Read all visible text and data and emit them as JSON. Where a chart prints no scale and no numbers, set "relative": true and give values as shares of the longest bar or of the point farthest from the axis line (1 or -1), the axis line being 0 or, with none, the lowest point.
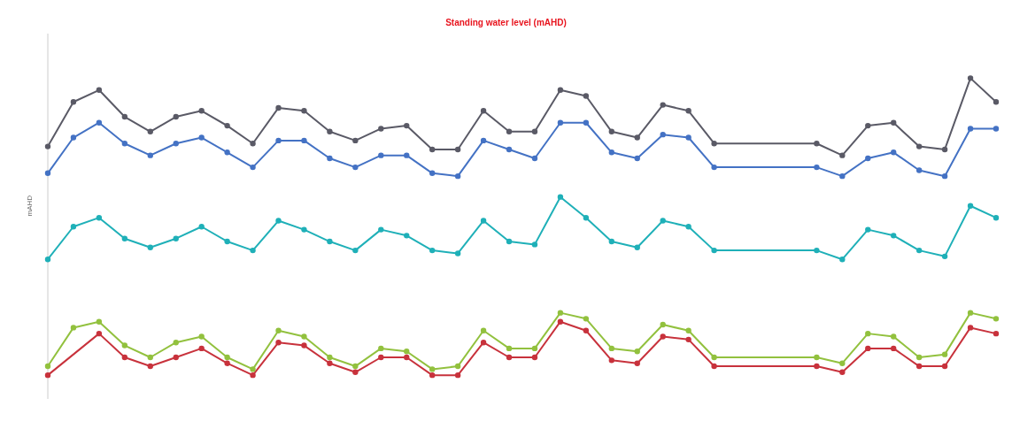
{
  "chart_data": {
    "type": "line",
    "title": "Standing water level (mAHD)",
    "ylabel": "mAHD",
    "relative": true,
    "marker": "circle",
    "legend": false,
    "grid": false,
    "categories": [
      null,
      null,
      null,
      null,
      null,
      null,
      null,
      null,
      null,
      null,
      null,
      null,
      null,
      null,
      null,
      null,
      null,
      null,
      null,
      null,
      null,
      null,
      null,
      null,
      null,
      null,
      null,
      null,
      null,
      null,
      null,
      null,
      null,
      null,
      null,
      null,
      null,
      null
    ],
    "series": [
      {
        "color": "#5a5a66",
        "values": [
          0.77,
          0.92,
          0.96,
          0.87,
          0.82,
          0.87,
          0.89,
          0.84,
          0.78,
          0.9,
          0.89,
          0.82,
          0.79,
          0.83,
          0.84,
          0.76,
          0.76,
          0.89,
          0.82,
          0.82,
          0.96,
          0.94,
          0.82,
          0.8,
          0.91,
          0.89,
          0.78,
          null,
          null,
          null,
          0.78,
          0.74,
          0.84,
          0.85,
          0.77,
          0.76,
          1,
          0.92
        ]
      },
      {
        "color": "#4472c4",
        "values": [
          0.68,
          0.8,
          0.85,
          0.78,
          0.74,
          0.78,
          0.8,
          0.75,
          0.7,
          0.79,
          0.79,
          0.73,
          0.7,
          0.74,
          0.74,
          0.68,
          0.67,
          0.79,
          0.76,
          0.73,
          0.85,
          0.85,
          0.75,
          0.73,
          0.81,
          0.8,
          0.7,
          null,
          null,
          null,
          0.7,
          0.67,
          0.73,
          0.75,
          0.69,
          0.67,
          0.83,
          0.83
        ]
      },
      {
        "color": "#1fb0b8",
        "values": [
          0.39,
          0.5,
          0.53,
          0.46,
          0.43,
          0.46,
          0.5,
          0.45,
          0.42,
          0.52,
          0.49,
          0.45,
          0.42,
          0.49,
          0.47,
          0.42,
          0.41,
          0.52,
          0.45,
          0.44,
          0.6,
          0.53,
          0.45,
          0.43,
          0.52,
          0.5,
          0.42,
          null,
          null,
          null,
          0.42,
          0.39,
          0.49,
          0.47,
          0.42,
          0.4,
          0.57,
          0.53
        ]
      },
      {
        "color": "#92c13e",
        "values": [
          0.03,
          0.16,
          0.18,
          0.1,
          0.06,
          0.11,
          0.13,
          0.06,
          0.02,
          0.15,
          0.13,
          0.06,
          0.03,
          0.09,
          0.08,
          0.02,
          0.03,
          0.15,
          0.09,
          0.09,
          0.21,
          0.19,
          0.09,
          0.08,
          0.17,
          0.15,
          0.06,
          null,
          null,
          null,
          0.06,
          0.04,
          0.14,
          0.13,
          0.06,
          0.07,
          0.21,
          0.19
        ]
      },
      {
        "color": "#c8323c",
        "values": [
          0,
          null,
          0.14,
          0.06,
          0.03,
          0.06,
          0.09,
          0.04,
          0,
          0.11,
          0.1,
          0.04,
          0.01,
          0.06,
          0.06,
          0,
          0,
          0.11,
          0.06,
          0.06,
          0.18,
          0.15,
          0.05,
          0.04,
          0.13,
          0.12,
          0.03,
          null,
          null,
          null,
          0.03,
          0.01,
          0.09,
          0.09,
          0.03,
          0.03,
          0.16,
          0.14
        ]
      }
    ]
  }
}
